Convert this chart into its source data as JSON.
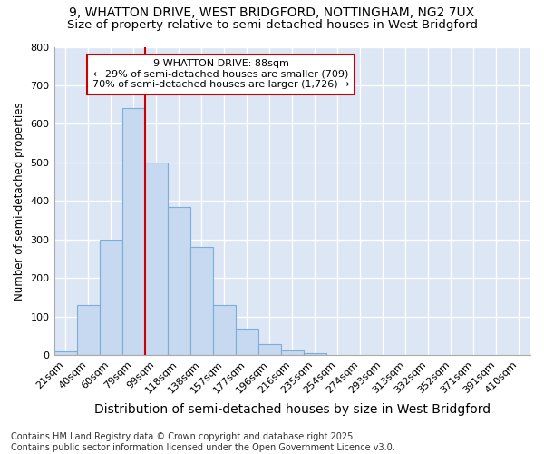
{
  "title1": "9, WHATTON DRIVE, WEST BRIDGFORD, NOTTINGHAM, NG2 7UX",
  "title2": "Size of property relative to semi-detached houses in West Bridgford",
  "xlabel": "Distribution of semi-detached houses by size in West Bridgford",
  "ylabel": "Number of semi-detached properties",
  "footnote": "Contains HM Land Registry data © Crown copyright and database right 2025.\nContains public sector information licensed under the Open Government Licence v3.0.",
  "categories": [
    "21sqm",
    "40sqm",
    "60sqm",
    "79sqm",
    "99sqm",
    "118sqm",
    "138sqm",
    "157sqm",
    "177sqm",
    "196sqm",
    "216sqm",
    "235sqm",
    "254sqm",
    "274sqm",
    "293sqm",
    "313sqm",
    "332sqm",
    "352sqm",
    "371sqm",
    "391sqm",
    "410sqm"
  ],
  "values": [
    10,
    130,
    300,
    640,
    500,
    385,
    280,
    130,
    70,
    28,
    12,
    5,
    0,
    0,
    0,
    0,
    0,
    0,
    0,
    0,
    0
  ],
  "bar_color": "#c6d9f0",
  "bar_edge_color": "#7bafd4",
  "vline_color": "#cc0000",
  "annotation_title": "9 WHATTON DRIVE: 88sqm",
  "annotation_line1": "← 29% of semi-detached houses are smaller (709)",
  "annotation_line2": "70% of semi-detached houses are larger (1,726) →",
  "annotation_box_color": "white",
  "annotation_box_edge": "#cc0000",
  "ylim": [
    0,
    800
  ],
  "yticks": [
    0,
    100,
    200,
    300,
    400,
    500,
    600,
    700,
    800
  ],
  "figure_background": "#ffffff",
  "plot_background": "#dce6f5",
  "grid_color": "#ffffff",
  "title1_fontsize": 10,
  "title2_fontsize": 9.5,
  "xlabel_fontsize": 10,
  "ylabel_fontsize": 8.5,
  "tick_fontsize": 8,
  "footnote_fontsize": 7,
  "vline_x_index": 3
}
